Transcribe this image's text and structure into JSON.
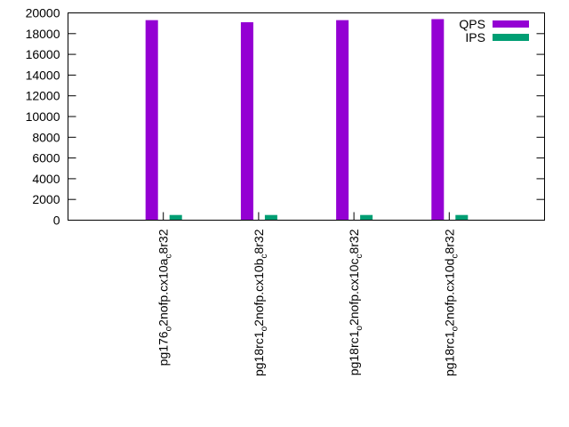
{
  "chart_data": {
    "type": "bar",
    "categories": [
      {
        "base": "pg176",
        "parts": [
          [
            "o",
            "2nofp.cx10a"
          ],
          [
            "c",
            "8r32"
          ]
        ]
      },
      {
        "base": "pg18rc1",
        "parts": [
          [
            "o",
            "2nofp.cx10b"
          ],
          [
            "c",
            "8r32"
          ]
        ]
      },
      {
        "base": "pg18rc1",
        "parts": [
          [
            "o",
            "2nofp.cx10c"
          ],
          [
            "c",
            "8r32"
          ]
        ]
      },
      {
        "base": "pg18rc1",
        "parts": [
          [
            "o",
            "2nofp.cx10d"
          ],
          [
            "c",
            "8r32"
          ]
        ]
      }
    ],
    "series": [
      {
        "name": "QPS",
        "color": "#9400d3",
        "values": [
          19300,
          19100,
          19300,
          19400
        ]
      },
      {
        "name": "IPS",
        "color": "#009e73",
        "values": [
          500,
          500,
          500,
          500
        ]
      }
    ],
    "ylim": [
      0,
      20000
    ],
    "yticks": [
      0,
      2000,
      4000,
      6000,
      8000,
      10000,
      12000,
      14000,
      16000,
      18000,
      20000
    ],
    "legend": "top-right",
    "grid": false
  }
}
